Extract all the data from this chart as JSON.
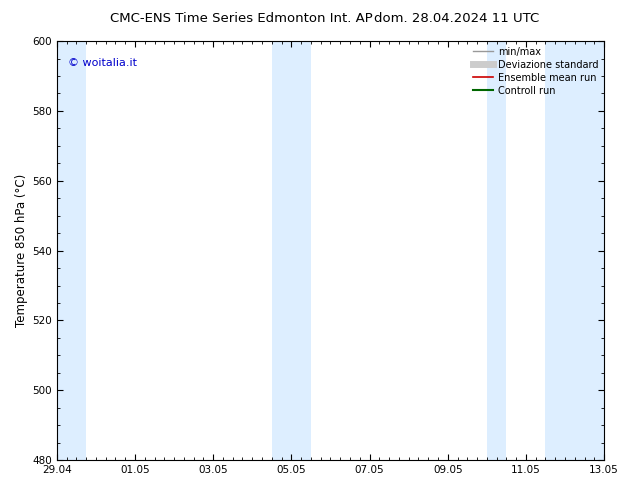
{
  "title_left": "CMC-ENS Time Series Edmonton Int. AP",
  "title_right": "dom. 28.04.2024 11 UTC",
  "ylabel": "Temperature 850 hPa (°C)",
  "ylim": [
    480,
    600
  ],
  "yticks": [
    480,
    500,
    520,
    540,
    560,
    580,
    600
  ],
  "xtick_labels": [
    "29.04",
    "01.05",
    "03.05",
    "05.05",
    "07.05",
    "09.05",
    "11.05",
    "13.05"
  ],
  "xtick_positions": [
    0,
    2,
    4,
    6,
    8,
    10,
    12,
    14
  ],
  "xlim": [
    0,
    14
  ],
  "watermark": "© woitalia.it",
  "watermark_color": "#0000CC",
  "shaded_bands": [
    {
      "x_start": 0.0,
      "x_end": 0.75
    },
    {
      "x_start": 5.5,
      "x_end": 6.0
    },
    {
      "x_start": 6.0,
      "x_end": 6.5
    },
    {
      "x_start": 11.0,
      "x_end": 11.5
    },
    {
      "x_start": 12.5,
      "x_end": 14.0
    }
  ],
  "shade_color": "#DDEEFF",
  "background_color": "#ffffff",
  "legend_items": [
    {
      "label": "min/max",
      "color": "#999999",
      "lw": 1.0,
      "style": "-"
    },
    {
      "label": "Deviazione standard",
      "color": "#cccccc",
      "lw": 5,
      "style": "-"
    },
    {
      "label": "Ensemble mean run",
      "color": "#cc0000",
      "lw": 1.2,
      "style": "-"
    },
    {
      "label": "Controll run",
      "color": "#006600",
      "lw": 1.5,
      "style": "-"
    }
  ],
  "title_fontsize": 9.5,
  "tick_fontsize": 7.5,
  "ylabel_fontsize": 8.5,
  "watermark_fontsize": 8
}
